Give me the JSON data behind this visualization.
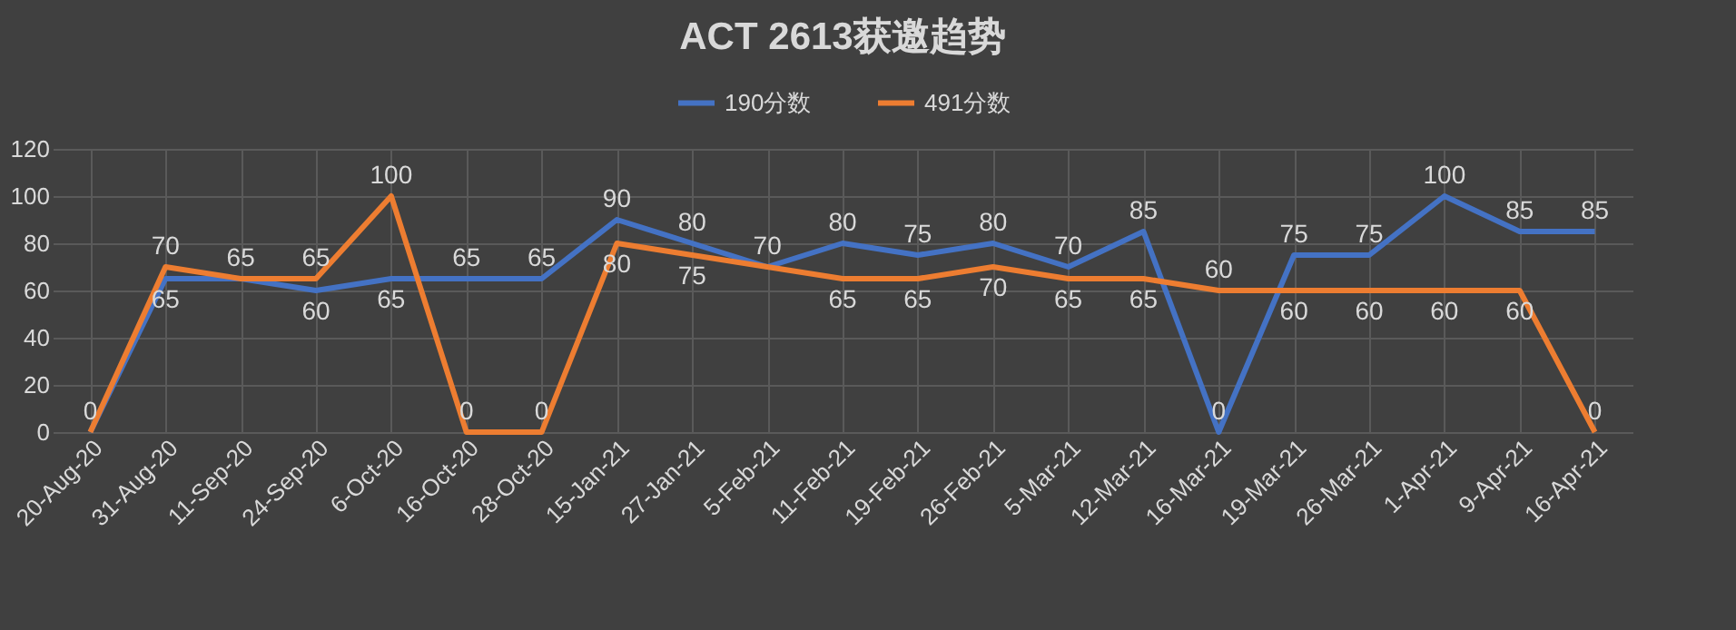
{
  "chart_data": {
    "type": "line",
    "title": "ACT 2613获邀趋势",
    "categories": [
      "20-Aug-20",
      "31-Aug-20",
      "11-Sep-20",
      "24-Sep-20",
      "6-Oct-20",
      "16-Oct-20",
      "28-Oct-20",
      "15-Jan-21",
      "27-Jan-21",
      "5-Feb-21",
      "11-Feb-21",
      "19-Feb-21",
      "26-Feb-21",
      "5-Mar-21",
      "12-Mar-21",
      "16-Mar-21",
      "19-Mar-21",
      "26-Mar-21",
      "1-Apr-21",
      "9-Apr-21",
      "16-Apr-21"
    ],
    "series": [
      {
        "name": "190分数",
        "color": "#4472c4",
        "values": [
          0,
          65,
          65,
          60,
          65,
          65,
          65,
          90,
          80,
          70,
          80,
          75,
          80,
          70,
          85,
          0,
          75,
          75,
          100,
          85,
          85
        ],
        "value_labels": [
          "0",
          "65",
          "65",
          "60",
          "65",
          "65",
          "65",
          "90",
          "80",
          "70",
          "80",
          "75",
          "80",
          "70",
          "85",
          "0",
          "75",
          "75",
          "100",
          "85",
          "85"
        ]
      },
      {
        "name": "491分数",
        "color": "#ed7d31",
        "values": [
          0,
          70,
          65,
          65,
          100,
          0,
          0,
          80,
          75,
          70,
          65,
          65,
          70,
          65,
          65,
          60,
          60,
          60,
          60,
          60,
          0
        ],
        "value_labels": [
          null,
          "70",
          null,
          "65",
          "100",
          "0",
          "0",
          "80",
          "75",
          null,
          "65",
          "65",
          "70",
          "65",
          "65",
          "60",
          "60",
          "60",
          "60",
          "60",
          "0"
        ]
      }
    ],
    "ylim": [
      0,
      120
    ],
    "yticks": [
      0,
      20,
      40,
      60,
      80,
      100,
      120
    ],
    "grid": true,
    "legend": "top"
  }
}
